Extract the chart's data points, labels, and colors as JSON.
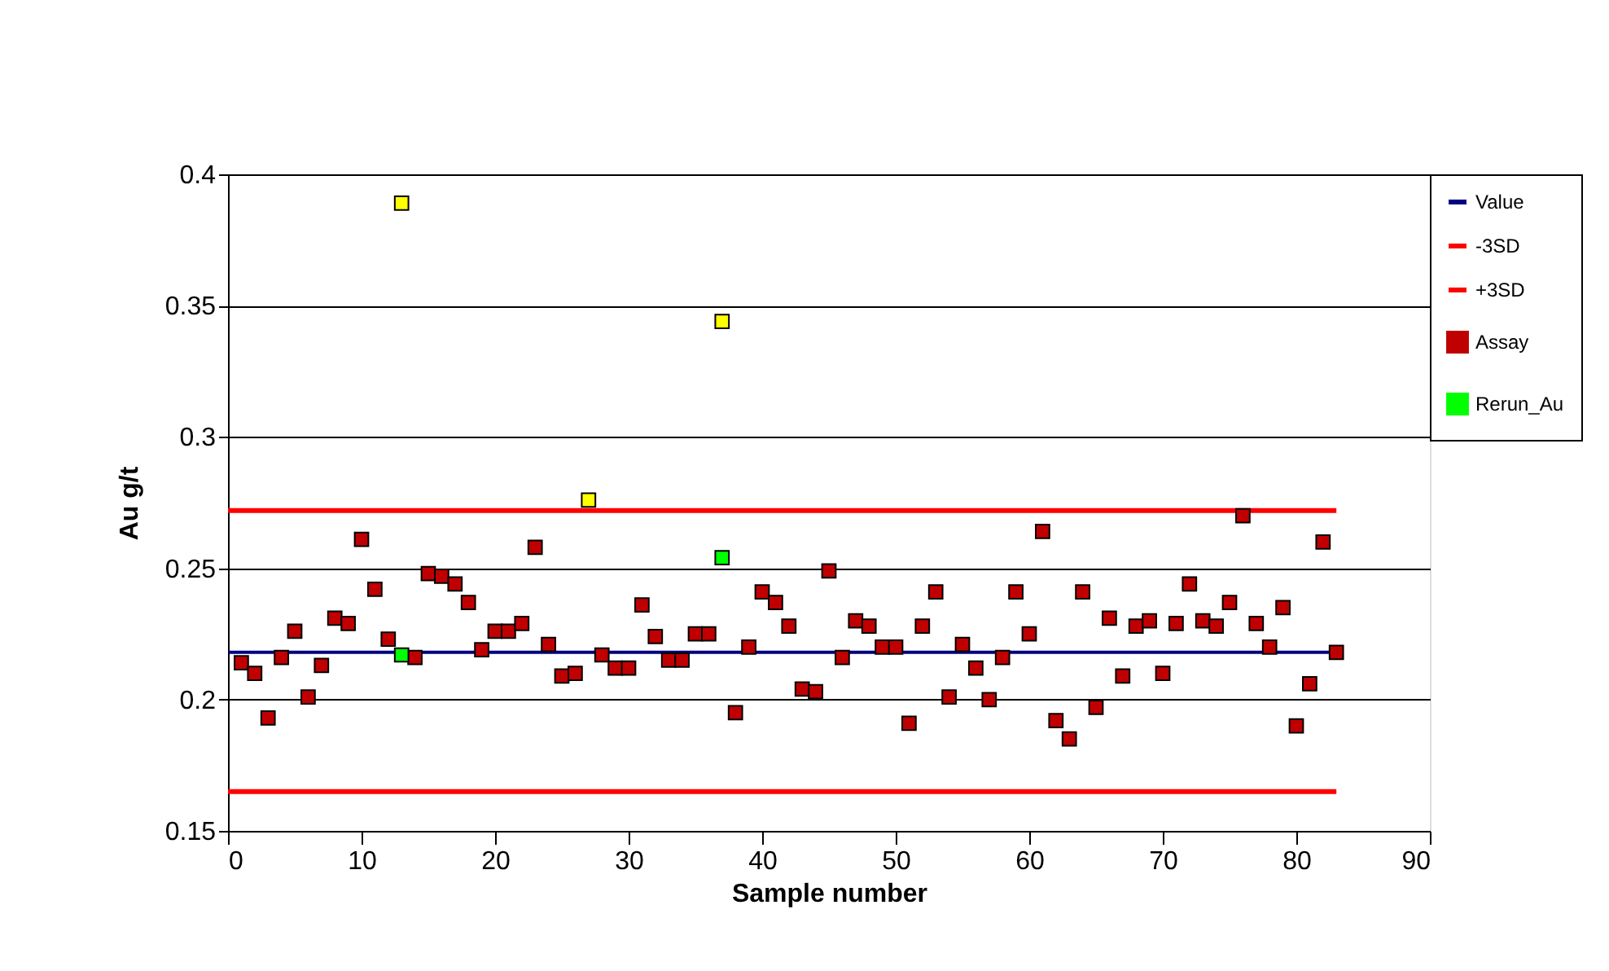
{
  "chart_data": {
    "type": "scatter",
    "xlabel": "Sample number",
    "ylabel": "Au g/t",
    "xlim": [
      0,
      90
    ],
    "xticks": [
      0,
      10,
      20,
      30,
      40,
      50,
      60,
      70,
      80,
      90
    ],
    "ylim": [
      0.15,
      0.4
    ],
    "yticks": [
      0.15,
      0.2,
      0.25,
      0.3,
      0.35,
      0.4
    ],
    "grid": "y",
    "legend": "right",
    "series": [
      {
        "name": "Value",
        "type": "line",
        "color": "#000080",
        "x": [
          0,
          83
        ],
        "values": [
          0.218,
          0.218
        ]
      },
      {
        "name": "-3SD",
        "type": "line",
        "color": "#ff0000",
        "x": [
          0,
          83
        ],
        "values": [
          0.165,
          0.165
        ]
      },
      {
        "name": "+3SD",
        "type": "line",
        "color": "#ff0000",
        "x": [
          0,
          83
        ],
        "values": [
          0.272,
          0.272
        ]
      },
      {
        "name": "Assay",
        "marker": "square",
        "color": "#c00000",
        "x": [
          1,
          2,
          3,
          4,
          5,
          6,
          7,
          8,
          9,
          10,
          11,
          12,
          14,
          15,
          16,
          17,
          18,
          19,
          20,
          21,
          22,
          23,
          24,
          25,
          26,
          28,
          29,
          30,
          31,
          32,
          33,
          34,
          35,
          36,
          38,
          39,
          40,
          41,
          42,
          43,
          44,
          45,
          46,
          47,
          48,
          49,
          50,
          51,
          52,
          53,
          54,
          55,
          56,
          57,
          58,
          59,
          60,
          61,
          62,
          63,
          64,
          65,
          66,
          67,
          68,
          69,
          70,
          71,
          72,
          73,
          74,
          75,
          76,
          77,
          78,
          79,
          80,
          81,
          82,
          83
        ],
        "values": [
          0.214,
          0.21,
          0.193,
          0.216,
          0.226,
          0.201,
          0.213,
          0.231,
          0.229,
          0.261,
          0.242,
          0.223,
          0.216,
          0.248,
          0.247,
          0.244,
          0.237,
          0.219,
          0.226,
          0.226,
          0.229,
          0.258,
          0.221,
          0.209,
          0.21,
          0.217,
          0.212,
          0.212,
          0.236,
          0.224,
          0.215,
          0.215,
          0.225,
          0.225,
          0.195,
          0.22,
          0.241,
          0.237,
          0.228,
          0.204,
          0.203,
          0.249,
          0.216,
          0.23,
          0.228,
          0.22,
          0.22,
          0.191,
          0.228,
          0.241,
          0.201,
          0.221,
          0.212,
          0.2,
          0.216,
          0.241,
          0.225,
          0.264,
          0.192,
          0.185,
          0.241,
          0.197,
          0.231,
          0.209,
          0.228,
          0.23,
          0.21,
          0.229,
          0.244,
          0.23,
          0.228,
          0.237,
          0.27,
          0.229,
          0.22,
          0.235,
          0.19,
          0.206,
          0.26,
          0.218
        ]
      },
      {
        "name": "Rerun_Au",
        "marker": "square",
        "color": "#00ff00",
        "x": [
          13,
          37
        ],
        "values": [
          0.217,
          0.254
        ]
      },
      {
        "marker": "square",
        "color": "#ffff00",
        "x": [
          13,
          27,
          37
        ],
        "values": [
          0.389,
          0.276,
          0.344
        ]
      }
    ]
  }
}
